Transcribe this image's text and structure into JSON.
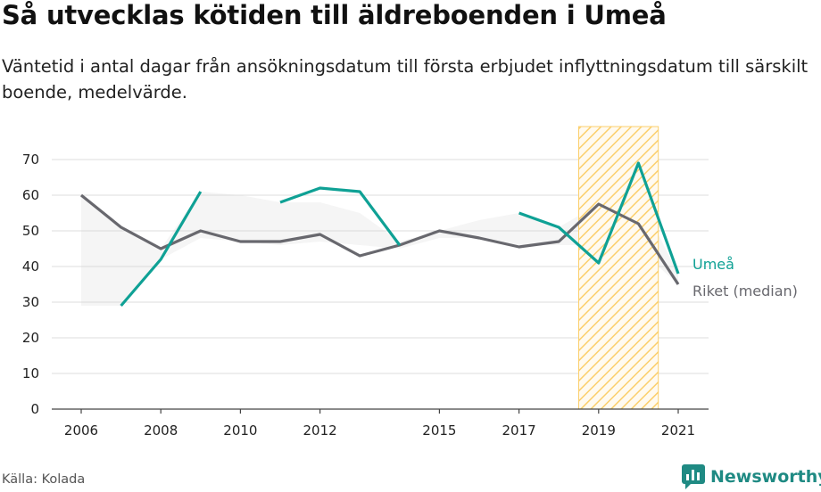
{
  "title": "Så utvecklas kötiden till äldreboenden i Umeå",
  "subtitle": "Väntetid i antal dagar från ansökningsdatum till första erbjudet inflyttningsdatum till särskilt boende, medelvärde.",
  "source": "Källa: Kolada",
  "brand": "Newsworthy",
  "colors": {
    "umea": "#0fa195",
    "riket": "#68686e",
    "band": "#f5f5f5",
    "highlight": "#fbcf6c",
    "grid": "#dcdcdc",
    "brand": "#1f8a83"
  },
  "icons": {
    "brand_logo": "newsworthy-chart-icon"
  },
  "chart_data": {
    "type": "line",
    "title": "Så utvecklas kötiden till äldreboenden i Umeå",
    "xlabel": "",
    "ylabel": "",
    "xlim": [
      2006,
      2021
    ],
    "ylim": [
      0,
      70
    ],
    "y_ticks": [
      0,
      10,
      20,
      30,
      40,
      50,
      60,
      70
    ],
    "x_ticks": [
      "2006",
      "2008",
      "2010",
      "2012",
      "2015",
      "2017",
      "2019",
      "2021"
    ],
    "grid": true,
    "highlight_range": [
      2018.5,
      2020.5
    ],
    "series": [
      {
        "name": "Umeå",
        "x": [
          2006,
          2007,
          2008,
          2009,
          2010,
          2011,
          2012,
          2013,
          2014,
          2015,
          2016,
          2017,
          2018,
          2019,
          2020,
          2021
        ],
        "values": [
          null,
          29,
          42,
          61,
          null,
          58,
          62,
          61,
          46,
          null,
          null,
          55,
          51,
          41,
          69,
          38
        ]
      },
      {
        "name": "Riket (median)",
        "x": [
          2006,
          2007,
          2008,
          2009,
          2010,
          2011,
          2012,
          2013,
          2014,
          2015,
          2016,
          2017,
          2018,
          2019,
          2020,
          2021
        ],
        "values": [
          60,
          51,
          45,
          50,
          47,
          47,
          49,
          43,
          46,
          50,
          48,
          45.5,
          47,
          57.5,
          52,
          35
        ]
      }
    ],
    "shaded_band": {
      "x": [
        2006,
        2007,
        2008,
        2009,
        2010,
        2011,
        2012,
        2013,
        2014,
        2015,
        2016,
        2017,
        2018,
        2019,
        2020,
        2021
      ],
      "lower": [
        29,
        29,
        42,
        48,
        47,
        46,
        47,
        46,
        45,
        48,
        48,
        46,
        46,
        46,
        45,
        35
      ],
      "upper": [
        60,
        51,
        45,
        61,
        60,
        58,
        58,
        55,
        47,
        50,
        53,
        55,
        51,
        57.5,
        60,
        38
      ]
    }
  }
}
